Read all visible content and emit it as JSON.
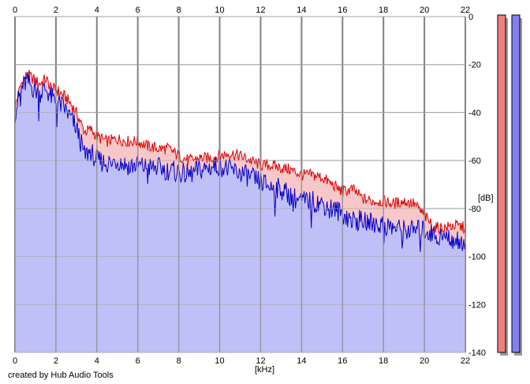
{
  "chart_data": {
    "type": "area",
    "title": "",
    "xlabel": "[kHz]",
    "ylabel": "[dB]",
    "xlim": [
      0,
      22
    ],
    "ylim": [
      -140,
      0
    ],
    "x_ticks": [
      0,
      2,
      4,
      6,
      8,
      10,
      12,
      14,
      16,
      18,
      20,
      22
    ],
    "y_ticks": [
      0,
      -20,
      -40,
      -60,
      -80,
      -100,
      -120,
      -140
    ],
    "grid": true,
    "series": [
      {
        "color": "#e00000",
        "fill": "#f8c8c8",
        "x": [
          0,
          0.3,
          0.6,
          0.9,
          1.2,
          1.5,
          1.8,
          2.1,
          2.4,
          2.7,
          3.0,
          3.2,
          3.4,
          3.7,
          4.0,
          4.5,
          5.0,
          5.5,
          6.0,
          6.5,
          7.0,
          7.5,
          8.0,
          8.5,
          9.0,
          9.5,
          10.0,
          10.5,
          11.0,
          11.5,
          12.0,
          12.5,
          13.0,
          13.5,
          14.0,
          14.5,
          15.0,
          15.5,
          16.0,
          16.5,
          17.0,
          17.5,
          18.0,
          18.5,
          19.0,
          19.5,
          20.0,
          20.5,
          21.0,
          21.5,
          22.0
        ],
        "values": [
          -38,
          -28,
          -24,
          -26,
          -28,
          -26,
          -30,
          -31,
          -33,
          -36,
          -40,
          -44,
          -48,
          -47,
          -50,
          -52,
          -51,
          -52,
          -52,
          -54,
          -55,
          -55,
          -58,
          -60,
          -59,
          -59,
          -58,
          -57,
          -58,
          -60,
          -62,
          -62,
          -63,
          -64,
          -66,
          -66,
          -67,
          -70,
          -73,
          -72,
          -76,
          -77,
          -77,
          -78,
          -77,
          -78,
          -83,
          -88,
          -88,
          -87,
          -88
        ]
      },
      {
        "color": "#0000cc",
        "fill": "#c0c0f8",
        "x": [
          0,
          0.3,
          0.6,
          0.9,
          1.2,
          1.5,
          1.8,
          2.1,
          2.4,
          2.7,
          3.0,
          3.2,
          3.4,
          3.7,
          4.0,
          4.5,
          5.0,
          5.5,
          6.0,
          6.5,
          7.0,
          7.5,
          8.0,
          8.5,
          9.0,
          9.5,
          10.0,
          10.5,
          11.0,
          11.5,
          12.0,
          12.5,
          13.0,
          13.5,
          14.0,
          14.5,
          15.0,
          15.5,
          16.0,
          16.5,
          17.0,
          17.5,
          18.0,
          18.5,
          19.0,
          19.5,
          20.0,
          20.5,
          21.0,
          21.5,
          22.0
        ],
        "values": [
          -40,
          -30,
          -27,
          -30,
          -32,
          -30,
          -34,
          -36,
          -38,
          -42,
          -46,
          -52,
          -58,
          -56,
          -60,
          -61,
          -60,
          -62,
          -62,
          -63,
          -63,
          -64,
          -65,
          -66,
          -64,
          -63,
          -62,
          -64,
          -65,
          -67,
          -69,
          -71,
          -72,
          -75,
          -77,
          -77,
          -78,
          -80,
          -82,
          -85,
          -85,
          -86,
          -87,
          -88,
          -89,
          -89,
          -89,
          -91,
          -92,
          -93,
          -94
        ]
      }
    ]
  },
  "footer": {
    "credit": "created by Hub Audio Tools"
  },
  "meters": {
    "left_color": "#f08080",
    "right_color": "#8080f0"
  }
}
